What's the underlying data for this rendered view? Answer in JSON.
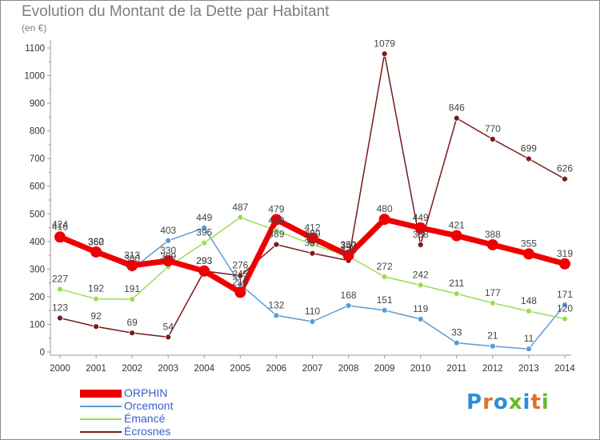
{
  "header": {
    "title": "Evolution du Montant de la Dette par Habitant",
    "unit": "(en €)"
  },
  "logo": {
    "text": "Proxiti",
    "colors": [
      "#2d8fd5",
      "#e0702a",
      "#2d8fd5",
      "#6bb82e",
      "#2d8fd5",
      "#e0702a",
      "#6bb82e"
    ]
  },
  "chart_data": {
    "type": "line",
    "title": "Evolution du Montant de la Dette par Habitant",
    "ylabel": "(en €)",
    "xlabel": "",
    "ylim": [
      0,
      1100
    ],
    "yticks": [
      0,
      100,
      200,
      300,
      400,
      500,
      600,
      700,
      800,
      900,
      1000,
      1100
    ],
    "x": [
      "2000",
      "2001",
      "2002",
      "2003",
      "2004",
      "2005",
      "2006",
      "2007",
      "2008",
      "2009",
      "2010",
      "2011",
      "2012",
      "2013",
      "2014"
    ],
    "grid": false,
    "legend": "bottom-left",
    "series": [
      {
        "name": "ORPHIN",
        "color": "#ee0000",
        "width": 7,
        "dot": 7,
        "values": [
          416,
          362,
          313,
          330,
          293,
          216,
          479,
          412,
          350,
          480,
          449,
          421,
          388,
          355,
          319
        ]
      },
      {
        "name": "Orcemont",
        "color": "#5b9bd5",
        "width": 1.5,
        "dot": 3.5,
        "values": [
          424,
          360,
          300,
          403,
          449,
          245,
          132,
          110,
          168,
          151,
          119,
          33,
          21,
          11,
          171
        ]
      },
      {
        "name": "Émancé",
        "color": "#99dd55",
        "width": 1.5,
        "dot": 3.5,
        "values": [
          227,
          192,
          191,
          309,
          395,
          487,
          439,
          389,
          347,
          272,
          242,
          211,
          177,
          148,
          120
        ]
      },
      {
        "name": "Écrosnes",
        "color": "#7a1a1a",
        "width": 1.5,
        "dot": 3.5,
        "values": [
          123,
          92,
          69,
          54,
          293,
          276,
          389,
          357,
          331,
          1079,
          388,
          846,
          770,
          699,
          626
        ]
      }
    ]
  }
}
